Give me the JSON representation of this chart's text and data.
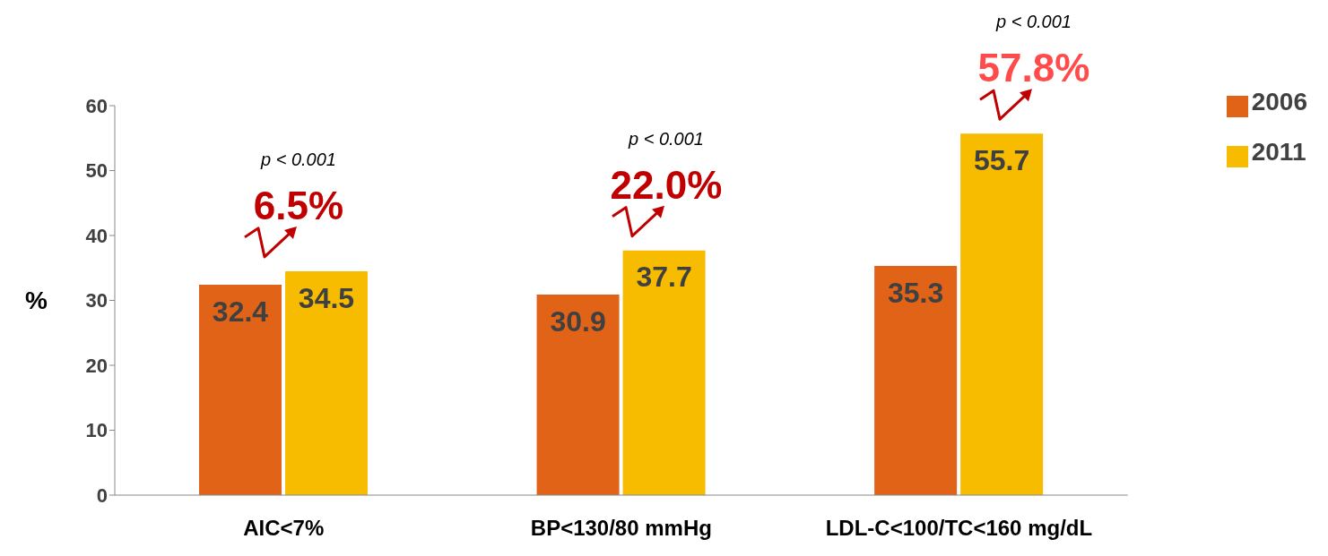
{
  "chart_data": {
    "type": "bar",
    "ylabel": "%",
    "categories": [
      "AIC<7%",
      "BP<130/80 mmHg",
      "LDL-C<100/TC<160 mg/dL"
    ],
    "series": [
      {
        "name": "2006",
        "color": "#e06317",
        "values": [
          32.4,
          30.9,
          35.3
        ]
      },
      {
        "name": "2011",
        "color": "#f7bb00",
        "values": [
          34.5,
          37.7,
          55.7
        ]
      }
    ],
    "ylim": [
      0,
      60
    ],
    "yticks": [
      0,
      10,
      20,
      30,
      40,
      50,
      60
    ],
    "legend": "top right",
    "data_labels": true,
    "annotations": [
      "p < 0.001",
      "6.5%",
      "p < 0.001",
      "22.0%",
      "p < 0.001",
      "57.8%"
    ]
  }
}
